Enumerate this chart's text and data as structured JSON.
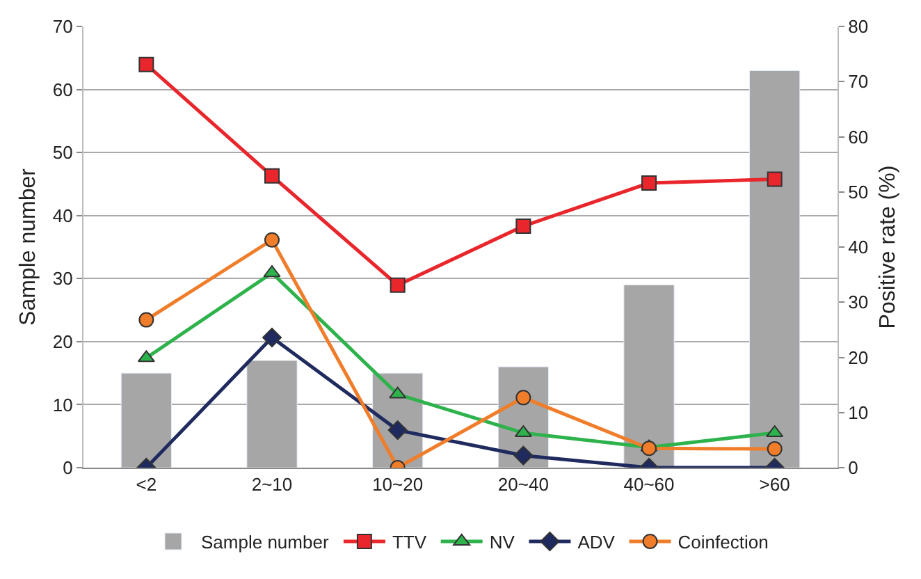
{
  "chart_data": {
    "type": "line",
    "categories": [
      "<2",
      "2~10",
      "10~20",
      "20~40",
      "40~60",
      ">60"
    ],
    "ylabel": "Sample number",
    "y2label": "Positive rate (%)",
    "ylim": [
      0,
      70
    ],
    "yticks": [
      0,
      10,
      20,
      30,
      40,
      50,
      60,
      70
    ],
    "y2lim": [
      0,
      80
    ],
    "y2ticks": [
      0,
      10,
      20,
      30,
      40,
      50,
      60,
      70,
      80
    ],
    "grid": "y",
    "legend": "bottom",
    "series": [
      {
        "name": "Sample number",
        "type": "bar",
        "color": "#a6a6a6",
        "values": [
          15,
          17,
          15,
          16,
          29,
          63
        ]
      },
      {
        "name": "TTV",
        "axis": "y2",
        "marker": "square",
        "color": "#e8262b",
        "values": [
          73.1,
          52.9,
          33.1,
          43.8,
          51.6,
          52.3
        ]
      },
      {
        "name": "NV",
        "axis": "y2",
        "marker": "triangle",
        "color": "#2eb24c",
        "values": [
          19.9,
          35.3,
          13.3,
          6.3,
          3.7,
          6.3
        ]
      },
      {
        "name": "ADV",
        "axis": "y2",
        "marker": "diamond",
        "color": "#1f2a5e",
        "values": [
          0,
          23.6,
          6.8,
          2.2,
          0,
          0
        ]
      },
      {
        "name": "Coinfection",
        "axis": "y2",
        "marker": "circle",
        "color": "#f07d2a",
        "values": [
          26.8,
          41.3,
          0,
          12.7,
          3.5,
          3.4
        ]
      }
    ]
  }
}
